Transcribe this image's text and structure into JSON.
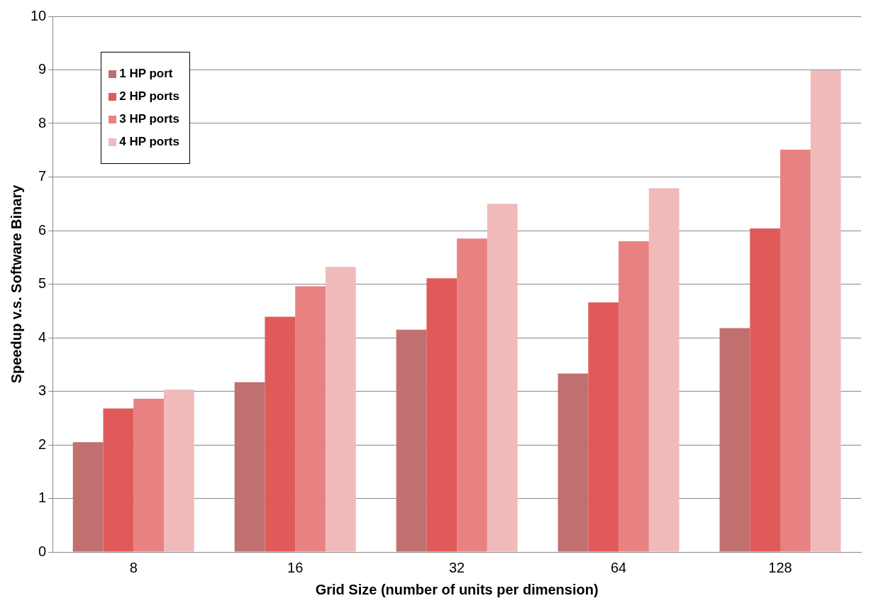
{
  "chart_data": {
    "type": "bar",
    "xlabel": "Grid Size (number of units per dimension)",
    "ylabel": "Speedup v.s. Software Binary",
    "categories": [
      "8",
      "16",
      "32",
      "64",
      "128"
    ],
    "series": [
      {
        "name": "1 HP port",
        "color": "#c0706f",
        "values": [
          2.05,
          3.17,
          4.15,
          3.33,
          4.18
        ]
      },
      {
        "name": "2 HP ports",
        "color": "#e05a5a",
        "values": [
          2.68,
          4.39,
          5.11,
          4.66,
          6.04
        ]
      },
      {
        "name": "3 HP ports",
        "color": "#e88282",
        "values": [
          2.86,
          4.96,
          5.85,
          5.8,
          7.51
        ]
      },
      {
        "name": "4 HP ports",
        "color": "#f0baba",
        "values": [
          3.03,
          5.32,
          6.5,
          6.79,
          8.99
        ]
      }
    ],
    "ylim": [
      0,
      10
    ],
    "yticks": [
      0,
      1,
      2,
      3,
      4,
      5,
      6,
      7,
      8,
      9,
      10
    ],
    "grid": "y",
    "legend": "top left"
  }
}
